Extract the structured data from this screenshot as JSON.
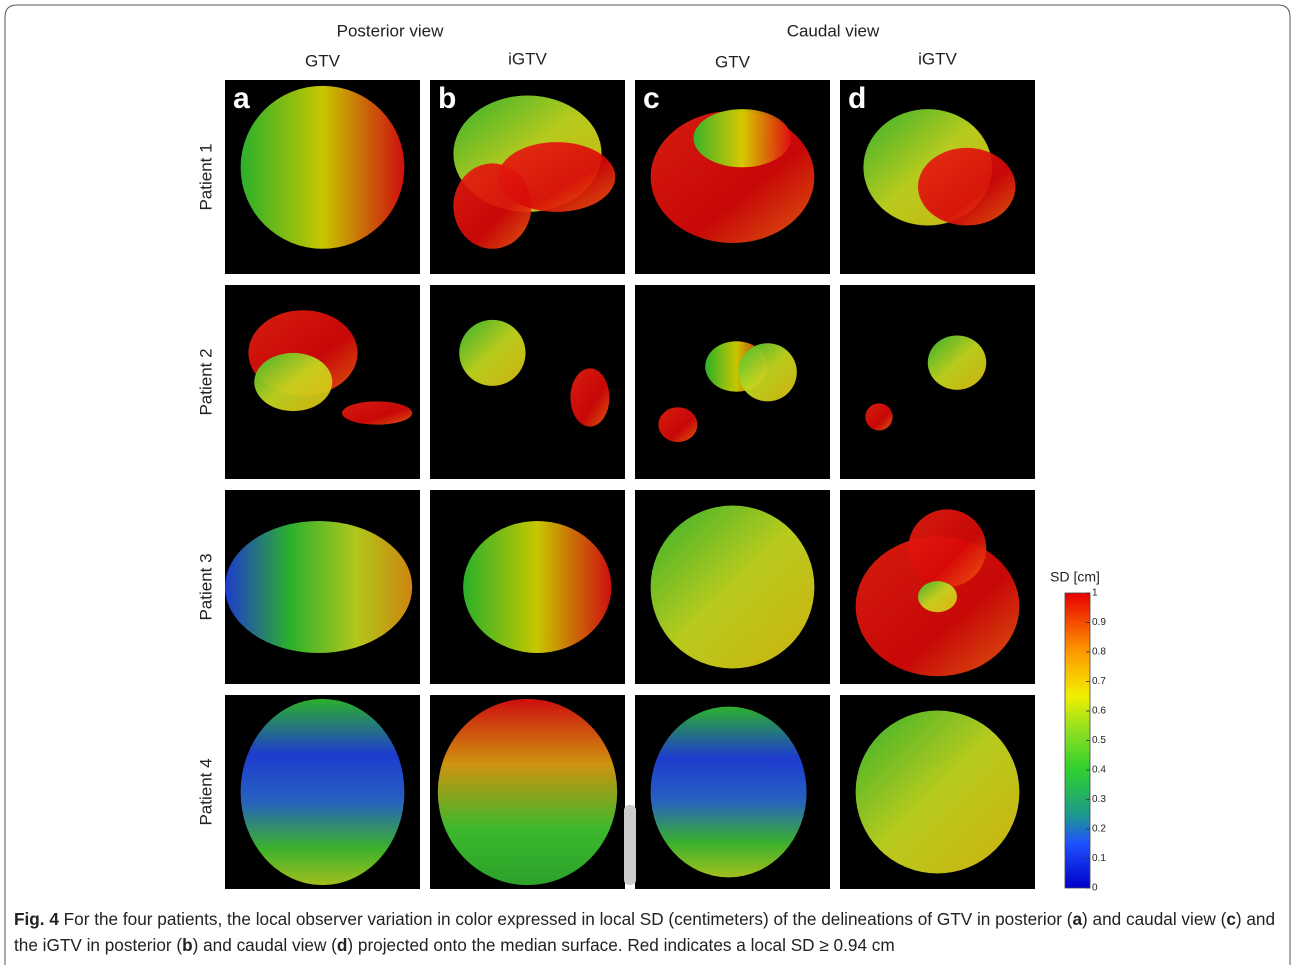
{
  "figure": {
    "view_headers": [
      "Posterior view",
      "Caudal view"
    ],
    "column_headers": [
      "GTV",
      "iGTV",
      "GTV",
      "iGTV"
    ],
    "row_labels": [
      "Patient 1",
      "Patient 2",
      "Patient 3",
      "Patient 4"
    ],
    "panel_letters": [
      "a",
      "b",
      "c",
      "d"
    ],
    "colorbar": {
      "label": "SD [cm]",
      "ticks": [
        0,
        0.1,
        0.2,
        0.3,
        0.4,
        0.5,
        0.6,
        0.7,
        0.8,
        0.9,
        1
      ]
    },
    "caption": [
      {
        "text": "Fig. 4",
        "bold": true
      },
      {
        "text": " For the four patients, the local observer variation in color expressed in local SD (centimeters) of the delineations of GTV in posterior (",
        "bold": false
      },
      {
        "text": "a",
        "bold": true
      },
      {
        "text": ") and caudal view (",
        "bold": false
      },
      {
        "text": "c",
        "bold": true
      },
      {
        "text": ") and the iGTV in posterior (",
        "bold": false
      },
      {
        "text": "b",
        "bold": true
      },
      {
        "text": ") and caudal view (",
        "bold": false
      },
      {
        "text": "d",
        "bold": true
      },
      {
        "text": ") projected onto the median surface. Red indicates a local SD ≥ 0.94 cm",
        "bold": false
      }
    ]
  }
}
